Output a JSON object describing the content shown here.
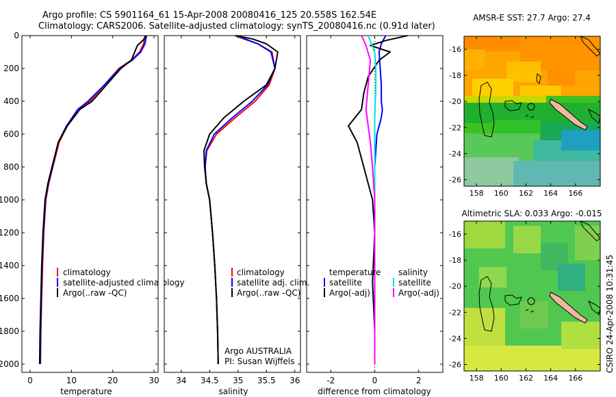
{
  "header": {
    "line1": "Argo profile: CS 5901164_61 15-Apr-2008 20080416_125 20.558S 162.54E",
    "line2": "Climatology: CARS2006. Satellite-adjusted climatology: synTS_20080416.nc (0.91d later)"
  },
  "side_stamp": "CSIRO 24-Apr-2008 10:31:45",
  "colors": {
    "clim": "#ff0000",
    "sat": "#0000ff",
    "argo": "#000000",
    "sat_salt": "#00e0e0",
    "argo_salt": "#ff00ff"
  },
  "chart_data": [
    {
      "type": "line",
      "xlabel": "temperature",
      "xlim": [
        -2,
        31
      ],
      "ylim": [
        2050,
        0
      ],
      "xticks": [
        0,
        10,
        20,
        30
      ],
      "yticks": [
        0,
        200,
        400,
        600,
        800,
        1000,
        1200,
        1400,
        1600,
        1800,
        2000
      ],
      "legend": [
        "climatology",
        "satellite-adjusted climatology",
        "Argo(..raw -QC)"
      ],
      "series": [
        {
          "name": "climatology",
          "color": "clim",
          "x": [
            27.8,
            27.5,
            26.5,
            24.5,
            21.5,
            18,
            14.5,
            12,
            9,
            7,
            5.5,
            4.5,
            3.8,
            3.3,
            3,
            2.8,
            2.6,
            2.5
          ],
          "y": [
            0,
            50,
            100,
            150,
            200,
            300,
            400,
            450,
            550,
            650,
            800,
            900,
            1000,
            1200,
            1400,
            1600,
            1800,
            2000
          ]
        },
        {
          "name": "satellite-adjusted climatology",
          "color": "sat",
          "x": [
            28.2,
            27.8,
            26.8,
            24.7,
            21.7,
            18,
            14,
            11.5,
            8.8,
            6.8,
            5.4,
            4.4,
            3.7,
            3.2,
            2.9,
            2.7,
            2.55,
            2.45
          ],
          "y": [
            0,
            50,
            100,
            150,
            200,
            300,
            400,
            450,
            550,
            650,
            800,
            900,
            1000,
            1200,
            1400,
            1600,
            1800,
            2000
          ]
        },
        {
          "name": "Argo(..raw -QC)",
          "color": "argo",
          "x": [
            28,
            27.5,
            26,
            24.5,
            22,
            18.5,
            15,
            12,
            9,
            6.8,
            5.3,
            4.3,
            3.6,
            3.1,
            2.8,
            2.6,
            2.4,
            2.3
          ],
          "y": [
            0,
            25,
            60,
            150,
            200,
            300,
            400,
            450,
            550,
            650,
            800,
            900,
            1000,
            1200,
            1400,
            1600,
            1800,
            2000
          ]
        }
      ]
    },
    {
      "type": "line",
      "xlabel": "salinity",
      "xlim": [
        33.7,
        36.1
      ],
      "ylim": [
        2050,
        0
      ],
      "xticks": [
        34,
        34.5,
        35,
        35.5,
        36
      ],
      "legend": [
        "climatology",
        "satellite adj. clim.",
        "Argo(..raw -QC)"
      ],
      "annotation": [
        "Argo AUSTRALIA",
        "PI: Susan Wijffels"
      ],
      "series": [
        {
          "name": "climatology",
          "color": "clim",
          "x": [
            34.95,
            35.1,
            35.35,
            35.6,
            35.65,
            35.55,
            35.3,
            34.95,
            34.62,
            34.45,
            34.42,
            34.44,
            34.5,
            34.55,
            34.59,
            34.62,
            34.64,
            34.65
          ],
          "y": [
            0,
            20,
            50,
            100,
            200,
            300,
            400,
            500,
            600,
            700,
            800,
            900,
            1000,
            1200,
            1400,
            1600,
            1800,
            2000
          ]
        },
        {
          "name": "satellite adj. clim.",
          "color": "sat",
          "x": [
            35.0,
            35.12,
            35.35,
            35.58,
            35.65,
            35.52,
            35.25,
            34.9,
            34.58,
            34.44,
            34.42,
            34.44,
            34.5,
            34.55,
            34.59,
            34.62,
            34.64,
            34.65
          ],
          "y": [
            0,
            20,
            50,
            100,
            200,
            300,
            400,
            500,
            600,
            700,
            800,
            900,
            1000,
            1200,
            1400,
            1600,
            1800,
            2000
          ]
        },
        {
          "name": "Argo(..raw -QC)",
          "color": "argo",
          "x": [
            34.95,
            35.25,
            35.5,
            35.7,
            35.65,
            35.5,
            35.1,
            34.75,
            34.5,
            34.4,
            34.41,
            34.44,
            34.5,
            34.55,
            34.59,
            34.62,
            34.64,
            34.65
          ],
          "y": [
            0,
            20,
            50,
            100,
            200,
            300,
            400,
            500,
            600,
            700,
            800,
            900,
            1000,
            1200,
            1400,
            1600,
            1800,
            2000
          ]
        }
      ]
    },
    {
      "type": "line",
      "xlabel": "difference from climatology",
      "xlim": [
        -3.1,
        3.1
      ],
      "ylim": [
        2050,
        0
      ],
      "xticks": [
        -2,
        0,
        2
      ],
      "legend_temperature_title": "temperature",
      "legend_salinity_title": "salinity",
      "legend_temperature": [
        "satellite",
        "Argo(-adj)"
      ],
      "legend_salinity": [
        "satellite",
        "Argo(-adj)"
      ],
      "series": [
        {
          "name": "temperature satellite",
          "color": "sat",
          "x": [
            0.5,
            0.3,
            0.2,
            0.25,
            0.3,
            0.3,
            0.35,
            0.3,
            0.1,
            0,
            0,
            0,
            0,
            0
          ],
          "y": [
            0,
            50,
            100,
            200,
            300,
            400,
            450,
            500,
            600,
            800,
            1000,
            1400,
            1800,
            2000
          ]
        },
        {
          "name": "temperature Argo(-adj)",
          "color": "argo",
          "x": [
            1.5,
            0.5,
            -0.2,
            0.7,
            0.2,
            -0.3,
            -0.5,
            -0.6,
            -1.2,
            -0.8,
            -0.5,
            -0.3,
            -0.1,
            0,
            -0.1,
            0,
            0
          ],
          "y": [
            0,
            30,
            60,
            100,
            150,
            250,
            350,
            450,
            550,
            650,
            800,
            900,
            1000,
            1200,
            1500,
            1800,
            2000
          ]
        },
        {
          "name": "salinity satellite",
          "color": "sat_salt",
          "x": [
            -0.3,
            -0.15,
            0,
            0.05,
            0.05,
            0,
            0,
            0,
            0,
            0
          ],
          "y": [
            0,
            50,
            100,
            200,
            300,
            500,
            800,
            1200,
            1600,
            2000
          ]
        },
        {
          "name": "salinity Argo(-adj)",
          "color": "argo_salt",
          "x": [
            -0.6,
            -0.4,
            -0.2,
            -0.3,
            -0.4,
            -0.3,
            -0.2,
            -0.1,
            0,
            0,
            0
          ],
          "y": [
            0,
            60,
            150,
            300,
            450,
            550,
            650,
            800,
            1000,
            1500,
            2000
          ]
        }
      ]
    },
    {
      "type": "heatmap",
      "title": "AMSR-E SST: 27.7 Argo: 27.4",
      "xlim": [
        157,
        168
      ],
      "ylim": [
        -26.5,
        -15
      ],
      "xticks": [
        158,
        160,
        162,
        164,
        166
      ],
      "yticks": [
        -16,
        -18,
        -20,
        -22,
        -24,
        -26
      ]
    },
    {
      "type": "heatmap",
      "title": "Altimetric SLA: 0.033 Argo: -0.015",
      "xlim": [
        157,
        168
      ],
      "ylim": [
        -26.5,
        -15
      ],
      "xticks": [
        158,
        160,
        162,
        164,
        166
      ],
      "yticks": [
        -16,
        -18,
        -20,
        -22,
        -24,
        -26
      ]
    }
  ]
}
